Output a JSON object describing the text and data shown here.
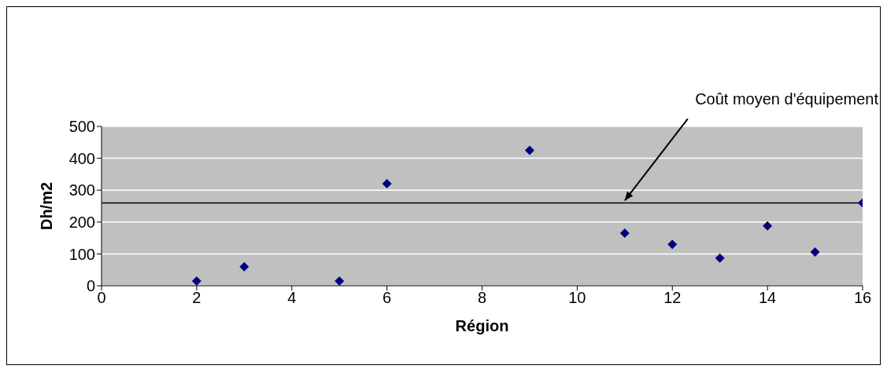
{
  "chart_data": {
    "type": "scatter",
    "xlabel": "Région",
    "ylabel": "Dh/m2",
    "x": [
      2,
      3,
      5,
      6,
      9,
      11,
      12,
      13,
      14,
      15,
      16
    ],
    "values": [
      15,
      60,
      15,
      320,
      425,
      165,
      130,
      87,
      188,
      106,
      260
    ],
    "color": "#000080",
    "marker": "diamond",
    "xlim": [
      0,
      16
    ],
    "xticks": [
      0,
      2,
      4,
      6,
      8,
      10,
      12,
      14,
      16
    ],
    "ylim": [
      0,
      500
    ],
    "yticks": [
      0,
      100,
      200,
      300,
      400,
      500
    ],
    "grid": "y",
    "legend": false,
    "ref_lines": [
      {
        "axis": "y",
        "value": 260,
        "label": "Coût moyen d'équipement",
        "color": "#000000"
      }
    ]
  }
}
